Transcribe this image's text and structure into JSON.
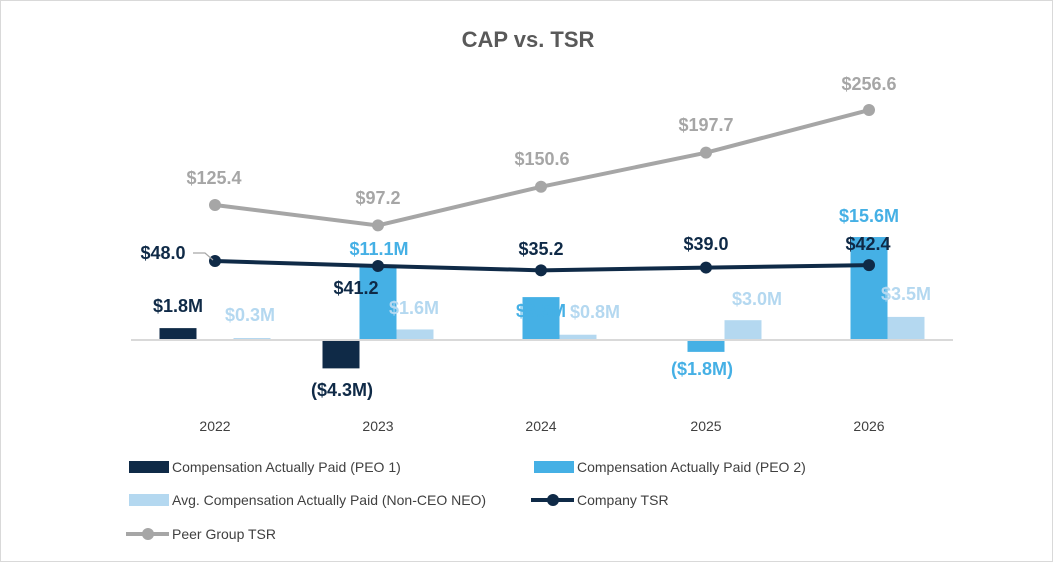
{
  "chart_data": {
    "type": "bar",
    "title": "CAP vs. TSR",
    "categories": [
      "2022",
      "2023",
      "2024",
      "2025",
      "2026"
    ],
    "bar_axis_unit": "$M",
    "series": [
      {
        "name": "Compensation Actually Paid (PEO 1)",
        "kind": "bar",
        "color": "#0f2a47",
        "values": [
          1.8,
          -4.3,
          null,
          null,
          null
        ],
        "labels": [
          "$1.8M",
          "($4.3M)",
          "",
          "",
          ""
        ]
      },
      {
        "name": "Compensation Actually Paid (PEO 2)",
        "kind": "bar",
        "color": "#45b0e5",
        "values": [
          null,
          11.1,
          6.5,
          -1.8,
          15.6
        ],
        "labels": [
          "",
          "$11.1M",
          "$6.5M",
          "($1.8M)",
          "$15.6M"
        ]
      },
      {
        "name": "Avg. Compensation Actually Paid (Non-CEO NEO)",
        "kind": "bar",
        "color": "#b4d8f0",
        "values": [
          0.3,
          1.6,
          0.8,
          3.0,
          3.5
        ],
        "labels": [
          "$0.3M",
          "$1.6M",
          "$0.8M",
          "$3.0M",
          "$3.5M"
        ]
      },
      {
        "name": "Company TSR",
        "kind": "line",
        "color": "#0f2a47",
        "values": [
          48.0,
          41.2,
          35.2,
          39.0,
          42.4
        ],
        "labels": [
          "$48.0",
          "$41.2",
          "$35.2",
          "$39.0",
          "$42.4"
        ]
      },
      {
        "name": "Peer Group TSR",
        "kind": "line",
        "color": "#a6a6a6",
        "values": [
          125.4,
          97.2,
          150.6,
          197.7,
          256.6
        ],
        "labels": [
          "$125.4",
          "$97.2",
          "$150.6",
          "$197.7",
          "$256.6"
        ]
      }
    ],
    "grid": false,
    "legend": "bottom",
    "secondary_axis": "hidden; lines plotted on separate TSR scale"
  }
}
